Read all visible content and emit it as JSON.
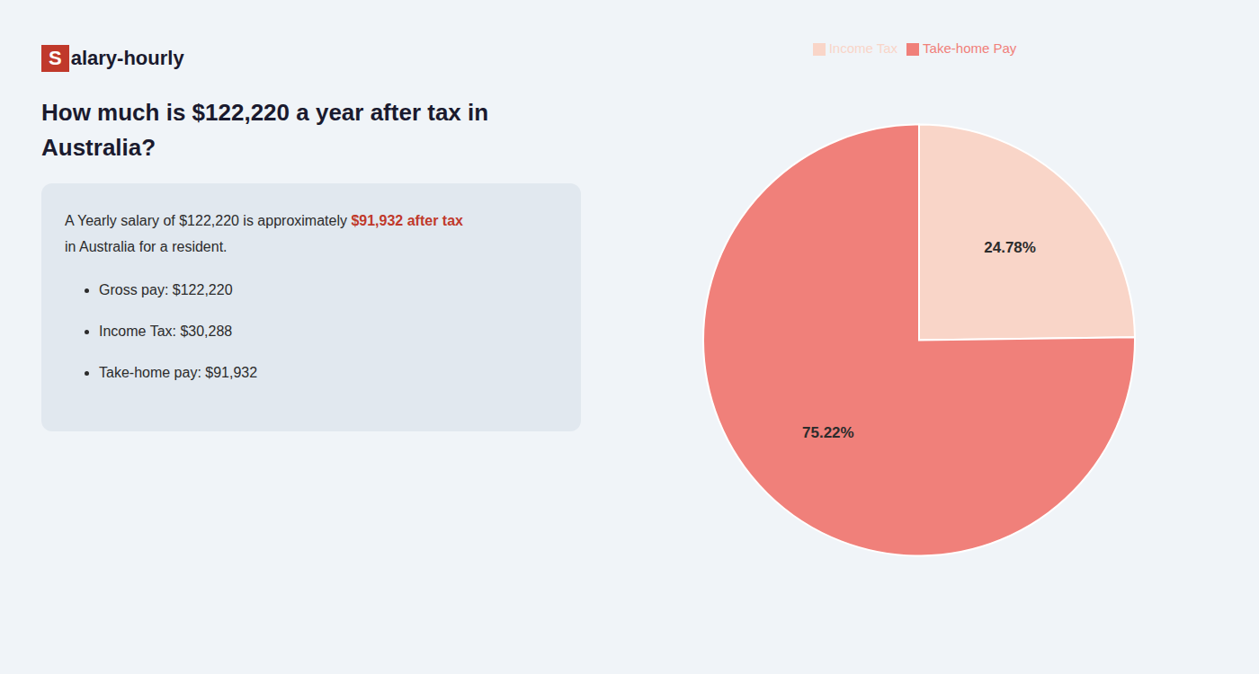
{
  "chart_data": {
    "type": "pie",
    "title": "How much is $122,220 a year after tax in\nAustralia?",
    "annotations": [
      "S",
      "alary-hourly",
      "A Yearly salary of $122,220 is approximately ",
      "$91,932 after tax",
      "in Australia for a resident.",
      "Gross pay: $122,220",
      "Income Tax: $30,288",
      "Take-home pay: $91,932"
    ],
    "categories": [
      "Income Tax",
      "Take-home Pay"
    ],
    "values": [
      24.78,
      75.22
    ],
    "value_labels": [
      "24.78%",
      "75.22%"
    ],
    "colors": [
      "#f9d5c8",
      "#f0807a"
    ],
    "data_labels": true,
    "legend": "top"
  }
}
